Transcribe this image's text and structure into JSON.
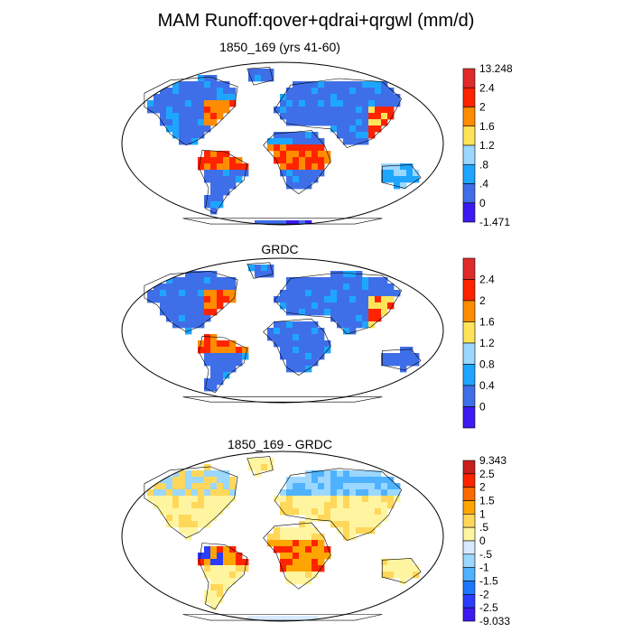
{
  "chart_data": {
    "title": "MAM Runoff:qover+qdrai+qrgwl (mm/d)",
    "panels": [
      {
        "type": "heatmap",
        "title": "1850_169 (yrs 41-60)",
        "projection": "Robinson world map",
        "colorbar": {
          "labels": [
            "13.248",
            "2.4",
            "2",
            "1.6",
            "1.2",
            ".8",
            ".4",
            "0",
            "-1.471"
          ],
          "colors": [
            "#e02b2b",
            "#ff2400",
            "#ff8c00",
            "#ffe45a",
            "#9bd7ff",
            "#1ea6ff",
            "#3f6fe8",
            "#3b1bf0"
          ]
        }
      },
      {
        "type": "heatmap",
        "title": "GRDC",
        "projection": "Robinson world map",
        "colorbar": {
          "labels": [
            "2.4",
            "2",
            "1.6",
            "1.2",
            "0.8",
            "0.4",
            "0"
          ],
          "colors": [
            "#e02b2b",
            "#ff2400",
            "#ff8c00",
            "#ffe45a",
            "#9bd7ff",
            "#1ea6ff",
            "#3f6fe8",
            "#3b1bf0"
          ]
        }
      },
      {
        "type": "heatmap",
        "title": "1850_169 - GRDC",
        "projection": "Robinson world map",
        "colorbar": {
          "labels": [
            "9.343",
            "2.5",
            "2",
            "1.5",
            "1",
            ".5",
            "0",
            "-.5",
            "-1",
            "-1.5",
            "-2",
            "-2.5",
            "-9.033"
          ],
          "colors": [
            "#c81e1e",
            "#ff2400",
            "#ff6a00",
            "#ffa500",
            "#ffd75a",
            "#fff5a0",
            "#d8eaff",
            "#9bd7ff",
            "#4fb2ff",
            "#1e78ff",
            "#2a3cff",
            "#3b1bf0"
          ]
        }
      }
    ]
  }
}
